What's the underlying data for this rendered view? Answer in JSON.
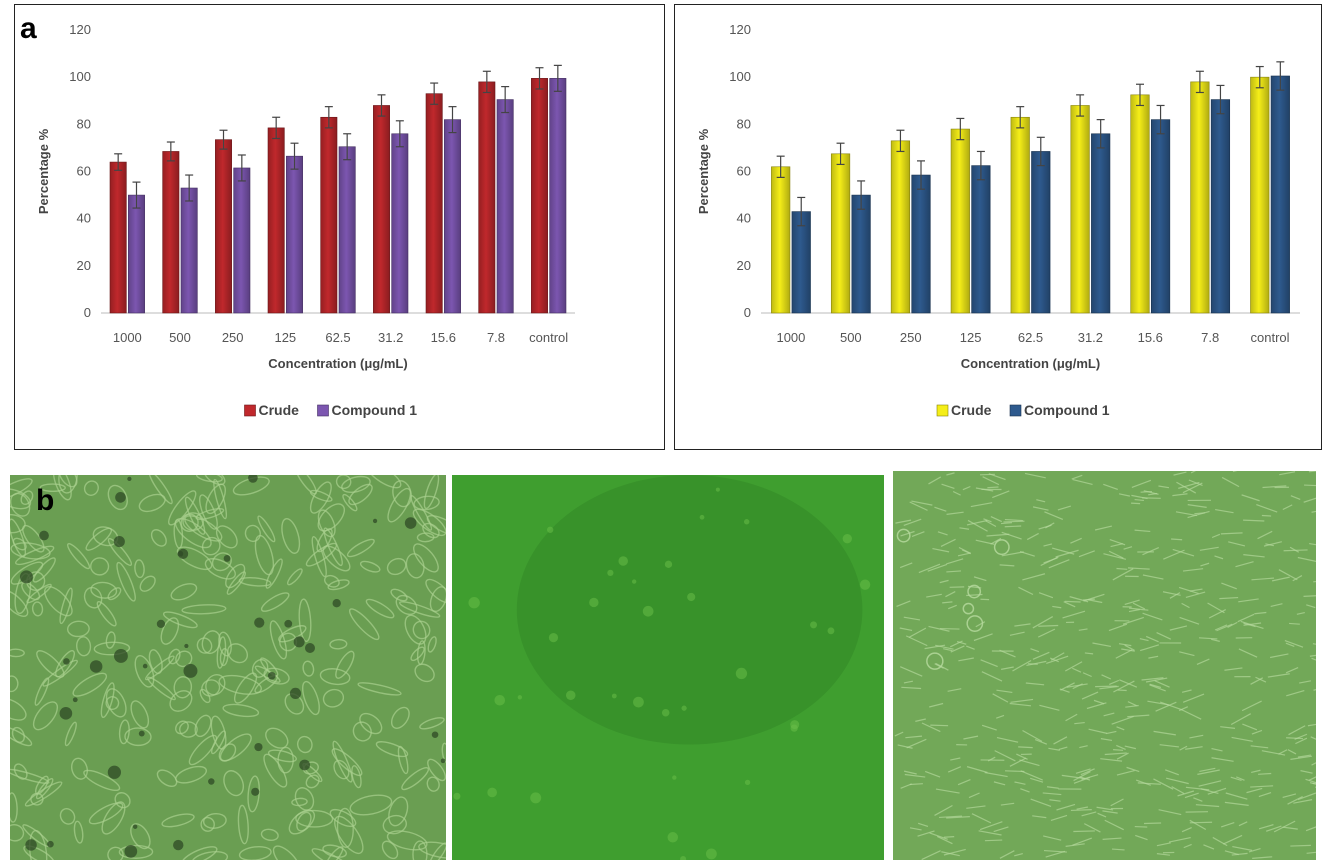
{
  "panel_a_label": "a",
  "panel_b_label": "b",
  "chart_data": [
    {
      "type": "bar",
      "categories": [
        "1000",
        "500",
        "250",
        "125",
        "62.5",
        "31.2",
        "15.6",
        "7.8",
        "control"
      ],
      "series": [
        {
          "name": "Crude",
          "color": "#c0282c",
          "values": [
            64,
            68.5,
            73.5,
            78.5,
            83,
            88,
            93,
            98,
            99.5
          ],
          "errors": [
            3.5,
            4,
            4,
            4.5,
            4.5,
            4.5,
            4.5,
            4.5,
            4.5
          ]
        },
        {
          "name": "Compound 1",
          "color": "#7c56b0",
          "values": [
            50,
            53,
            61.5,
            66.5,
            70.5,
            76,
            82,
            90.5,
            99.5
          ],
          "errors": [
            5.5,
            5.5,
            5.5,
            5.5,
            5.5,
            5.5,
            5.5,
            5.5,
            5.5
          ]
        }
      ],
      "yticks": [
        "0",
        "20",
        "40",
        "60",
        "80",
        "100",
        "120"
      ],
      "ylim": [
        0,
        120
      ],
      "xlabel": "Concentration (μg/mL)",
      "ylabel": "Percentage %",
      "legend_position": "bottom",
      "grid": false
    },
    {
      "type": "bar",
      "categories": [
        "1000",
        "500",
        "250",
        "125",
        "62.5",
        "31.2",
        "15.6",
        "7.8",
        "control"
      ],
      "series": [
        {
          "name": "Crude",
          "color": "#f5ee18",
          "values": [
            62,
            67.5,
            73,
            78,
            83,
            88,
            92.5,
            98,
            100
          ],
          "errors": [
            4.5,
            4.5,
            4.5,
            4.5,
            4.5,
            4.5,
            4.5,
            4.5,
            4.5
          ]
        },
        {
          "name": "Compound 1",
          "color": "#2e5a8e",
          "values": [
            43,
            50,
            58.5,
            62.5,
            68.5,
            76,
            82,
            90.5,
            100.5
          ],
          "errors": [
            6,
            6,
            6,
            6,
            6,
            6,
            6,
            6,
            6
          ]
        }
      ],
      "yticks": [
        "0",
        "20",
        "40",
        "60",
        "80",
        "100",
        "120"
      ],
      "ylim": [
        0,
        120
      ],
      "xlabel": "Concentration (μg/mL)",
      "ylabel": "Percentage %",
      "legend_position": "bottom",
      "grid": false
    }
  ],
  "photos": [
    {
      "name": "cell-micrograph-elongated-cells",
      "base_color": "#6a9e52",
      "line_color": "#a9d08e",
      "dark_color": "#2f4a25"
    },
    {
      "name": "cell-micrograph-blank-green",
      "base_color": "#3f9e2f",
      "line_color": "#6cc04a",
      "dark_color": "#2c7a22"
    },
    {
      "name": "cell-micrograph-dense-fibroblasts",
      "base_color": "#72a858",
      "line_color": "#b8dba0",
      "dark_color": "#4f7f3c"
    }
  ]
}
